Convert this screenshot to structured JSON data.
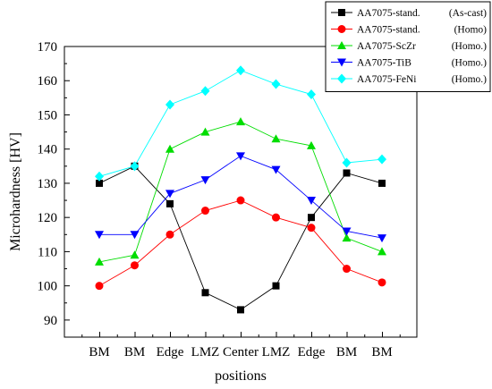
{
  "chart_data": {
    "type": "line",
    "title": "",
    "xlabel": "positions",
    "ylabel": "Microhardness [HV]",
    "categories": [
      "BM",
      "BM",
      "Edge",
      "LMZ",
      "Center",
      "LMZ",
      "Edge",
      "BM",
      "BM"
    ],
    "ylim": [
      85,
      170
    ],
    "yticks": [
      90,
      100,
      110,
      120,
      130,
      140,
      150,
      160,
      170
    ],
    "legend_position": "top-right",
    "grid": false,
    "series": [
      {
        "name": "AA7075-stand.",
        "condition": "(As-cast)",
        "color": "#000000",
        "marker": "square",
        "values": [
          130,
          135,
          124,
          98,
          93,
          100,
          120,
          133,
          130
        ]
      },
      {
        "name": "AA7075-stand.",
        "condition": "(Homo)",
        "color": "#ff0000",
        "marker": "circle",
        "values": [
          100,
          106,
          115,
          122,
          125,
          120,
          117,
          105,
          101
        ]
      },
      {
        "name": "AA7075-ScZr",
        "condition": "(Homo.)",
        "color": "#00dd00",
        "marker": "triangle-up",
        "values": [
          107,
          109,
          140,
          145,
          148,
          143,
          141,
          114,
          110
        ]
      },
      {
        "name": "AA7075-TiB",
        "condition": "(Homo.)",
        "color": "#0000ff",
        "marker": "triangle-down",
        "values": [
          115,
          115,
          127,
          131,
          138,
          134,
          125,
          116,
          114
        ]
      },
      {
        "name": "AA7075-FeNi",
        "condition": "(Homo.)",
        "color": "#00ffff",
        "marker": "diamond",
        "values": [
          132,
          135,
          153,
          157,
          163,
          159,
          156,
          136,
          137
        ]
      }
    ]
  }
}
